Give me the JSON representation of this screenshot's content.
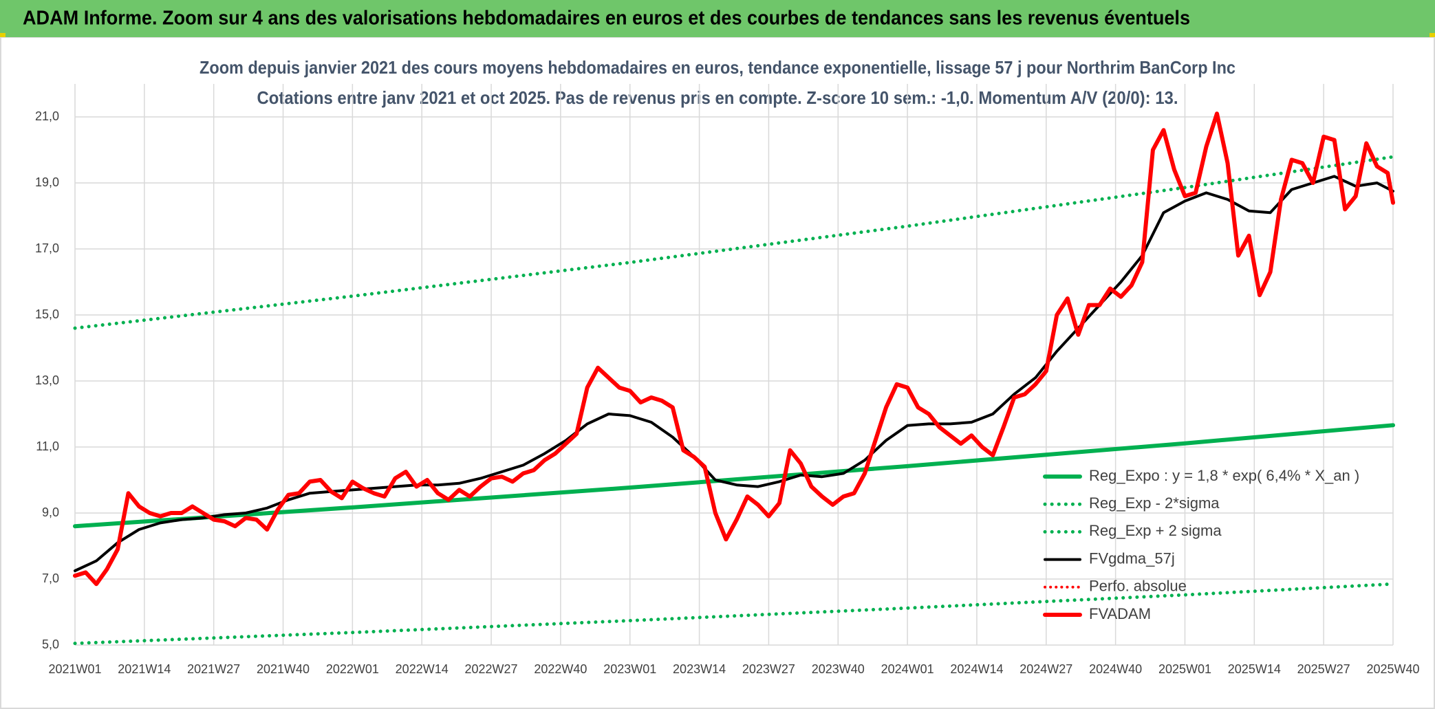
{
  "chart_data": {
    "type": "line",
    "header": "ADAM Informe. Zoom sur 4 ans des valorisations hebdomadaires en euros et des courbes de tendances sans les revenus éventuels",
    "title": "Zoom depuis janvier 2021 des cours moyens hebdomadaires en euros, tendance exponentielle, lissage 57 j pour Northrim BanCorp Inc",
    "subtitle": "Cotations entre janv 2021 et oct 2025. Pas de revenus pris en compte. Z-score 10 sem.: -1,0. Momentum A/V (20/0): 13.",
    "categories": [
      "2021W01",
      "2021W14",
      "2021W27",
      "2021W40",
      "2022W01",
      "2022W14",
      "2022W27",
      "2022W40",
      "2023W01",
      "2023W14",
      "2023W27",
      "2023W40",
      "2024W01",
      "2024W14",
      "2024W27",
      "2024W40",
      "2025W01",
      "2025W14",
      "2025W27",
      "2025W40"
    ],
    "ylim": [
      5,
      22
    ],
    "yticks": [
      {
        "value": 5,
        "label": "5,0"
      },
      {
        "value": 7,
        "label": "7,0"
      },
      {
        "value": 9,
        "label": "9,0"
      },
      {
        "value": 11,
        "label": "11,0"
      },
      {
        "value": 13,
        "label": "13,0"
      },
      {
        "value": 15,
        "label": "15,0"
      },
      {
        "value": 17,
        "label": "17,0"
      },
      {
        "value": 19,
        "label": "19,0"
      },
      {
        "value": 21,
        "label": "21,0"
      }
    ],
    "grid": true,
    "legend": "right",
    "series": [
      {
        "name": "Reg_Expo : y = 1,8 * exp( 6,4% *  X_an )",
        "color": "#00b050",
        "style": "solid",
        "width": 6,
        "x": [
          "2021W01",
          "2022W01",
          "2023W01",
          "2024W01",
          "2025W01",
          "2025W40"
        ],
        "values": [
          8.6,
          9.17,
          9.77,
          10.42,
          11.11,
          11.66
        ]
      },
      {
        "name": "Reg_Exp - 2*sigma",
        "color": "#00b050",
        "style": "dotted",
        "width": 5,
        "x": [
          "2021W01",
          "2022W01",
          "2023W01",
          "2024W01",
          "2025W01",
          "2025W40"
        ],
        "values": [
          5.05,
          5.38,
          5.74,
          6.12,
          6.52,
          6.85
        ]
      },
      {
        "name": "Reg_Exp + 2 sigma",
        "color": "#00b050",
        "style": "dotted",
        "width": 5,
        "x": [
          "2021W01",
          "2022W01",
          "2023W01",
          "2024W01",
          "2025W01",
          "2025W40"
        ],
        "values": [
          14.6,
          15.57,
          16.59,
          17.69,
          18.86,
          19.79
        ]
      },
      {
        "name": "FVgdma_57j",
        "color": "#000000",
        "style": "solid",
        "width": 4,
        "x": [
          "2021W01",
          "2021W05",
          "2021W09",
          "2021W13",
          "2021W17",
          "2021W21",
          "2021W25",
          "2021W29",
          "2021W33",
          "2021W37",
          "2021W41",
          "2021W45",
          "2021W49",
          "2022W01",
          "2022W05",
          "2022W09",
          "2022W13",
          "2022W17",
          "2022W21",
          "2022W25",
          "2022W29",
          "2022W33",
          "2022W37",
          "2022W41",
          "2022W45",
          "2022W49",
          "2023W01",
          "2023W05",
          "2023W09",
          "2023W13",
          "2023W17",
          "2023W21",
          "2023W25",
          "2023W29",
          "2023W33",
          "2023W37",
          "2023W41",
          "2023W45",
          "2023W49",
          "2024W01",
          "2024W05",
          "2024W09",
          "2024W13",
          "2024W17",
          "2024W21",
          "2024W25",
          "2024W29",
          "2024W33",
          "2024W37",
          "2024W41",
          "2024W45",
          "2024W49",
          "2025W01",
          "2025W05",
          "2025W09",
          "2025W13",
          "2025W17",
          "2025W21",
          "2025W25",
          "2025W29",
          "2025W33",
          "2025W37",
          "2025W40"
        ],
        "values": [
          7.25,
          7.55,
          8.1,
          8.5,
          8.7,
          8.8,
          8.85,
          8.95,
          9.0,
          9.15,
          9.4,
          9.6,
          9.65,
          9.7,
          9.75,
          9.8,
          9.85,
          9.85,
          9.9,
          10.05,
          10.25,
          10.45,
          10.8,
          11.2,
          11.7,
          12.0,
          11.95,
          11.75,
          11.3,
          10.7,
          10.0,
          9.85,
          9.8,
          9.95,
          10.15,
          10.1,
          10.2,
          10.6,
          11.2,
          11.65,
          11.7,
          11.7,
          11.75,
          12.0,
          12.6,
          13.1,
          13.9,
          14.6,
          15.3,
          16.0,
          16.8,
          18.1,
          18.45,
          18.7,
          18.5,
          18.15,
          18.1,
          18.8,
          19.0,
          19.2,
          18.9,
          19.0,
          18.75
        ]
      },
      {
        "name": "Perfo. absolue",
        "color": "#ff0000",
        "style": "dotted",
        "width": 4,
        "x": [],
        "values": []
      },
      {
        "name": "FVADAM",
        "color": "#ff0000",
        "style": "solid",
        "width": 6,
        "x": [
          "2021W01",
          "2021W03",
          "2021W05",
          "2021W07",
          "2021W09",
          "2021W11",
          "2021W13",
          "2021W15",
          "2021W17",
          "2021W19",
          "2021W21",
          "2021W23",
          "2021W25",
          "2021W27",
          "2021W29",
          "2021W31",
          "2021W33",
          "2021W35",
          "2021W37",
          "2021W39",
          "2021W41",
          "2021W43",
          "2021W45",
          "2021W47",
          "2021W49",
          "2021W51",
          "2022W01",
          "2022W03",
          "2022W05",
          "2022W07",
          "2022W09",
          "2022W11",
          "2022W13",
          "2022W15",
          "2022W17",
          "2022W19",
          "2022W21",
          "2022W23",
          "2022W25",
          "2022W27",
          "2022W29",
          "2022W31",
          "2022W33",
          "2022W35",
          "2022W37",
          "2022W39",
          "2022W41",
          "2022W43",
          "2022W45",
          "2022W47",
          "2022W49",
          "2022W51",
          "2023W01",
          "2023W03",
          "2023W05",
          "2023W07",
          "2023W09",
          "2023W11",
          "2023W13",
          "2023W15",
          "2023W17",
          "2023W19",
          "2023W21",
          "2023W23",
          "2023W25",
          "2023W27",
          "2023W29",
          "2023W31",
          "2023W33",
          "2023W35",
          "2023W37",
          "2023W39",
          "2023W41",
          "2023W43",
          "2023W45",
          "2023W47",
          "2023W49",
          "2023W51",
          "2024W01",
          "2024W03",
          "2024W05",
          "2024W07",
          "2024W09",
          "2024W11",
          "2024W13",
          "2024W15",
          "2024W17",
          "2024W19",
          "2024W21",
          "2024W23",
          "2024W25",
          "2024W27",
          "2024W29",
          "2024W31",
          "2024W33",
          "2024W35",
          "2024W37",
          "2024W39",
          "2024W41",
          "2024W43",
          "2024W45",
          "2024W47",
          "2024W49",
          "2024W51",
          "2025W01",
          "2025W03",
          "2025W05",
          "2025W07",
          "2025W09",
          "2025W11",
          "2025W13",
          "2025W15",
          "2025W17",
          "2025W19",
          "2025W21",
          "2025W23",
          "2025W25",
          "2025W27",
          "2025W29",
          "2025W31",
          "2025W33",
          "2025W35",
          "2025W37",
          "2025W39",
          "2025W40"
        ],
        "values": [
          7.1,
          7.2,
          6.85,
          7.3,
          7.9,
          9.6,
          9.2,
          9.0,
          8.9,
          9.0,
          9.0,
          9.2,
          9.0,
          8.8,
          8.75,
          8.6,
          8.85,
          8.8,
          8.5,
          9.1,
          9.55,
          9.6,
          9.95,
          10.0,
          9.65,
          9.45,
          9.95,
          9.75,
          9.6,
          9.5,
          10.05,
          10.25,
          9.8,
          10.0,
          9.6,
          9.4,
          9.7,
          9.5,
          9.8,
          10.05,
          10.1,
          9.95,
          10.2,
          10.3,
          10.6,
          10.8,
          11.1,
          11.4,
          12.8,
          13.4,
          13.1,
          12.8,
          12.7,
          12.35,
          12.5,
          12.4,
          12.2,
          10.9,
          10.7,
          10.4,
          9.0,
          8.2,
          8.8,
          9.5,
          9.25,
          8.9,
          9.3,
          10.9,
          10.5,
          9.8,
          9.5,
          9.25,
          9.5,
          9.6,
          10.2,
          11.2,
          12.2,
          12.9,
          12.8,
          12.2,
          12.0,
          11.6,
          11.35,
          11.1,
          11.35,
          11.0,
          10.75,
          11.6,
          12.5,
          12.6,
          12.9,
          13.3,
          15.0,
          15.5,
          14.4,
          15.3,
          15.3,
          15.8,
          15.55,
          15.9,
          16.6,
          20.0,
          20.6,
          19.4,
          18.6,
          18.7,
          20.1,
          21.1,
          19.6,
          16.8,
          17.4,
          15.6,
          16.3,
          18.5,
          19.7,
          19.6,
          19.0,
          20.4,
          20.3,
          18.2,
          18.6,
          20.2,
          19.5,
          19.3,
          18.4
        ]
      }
    ]
  }
}
